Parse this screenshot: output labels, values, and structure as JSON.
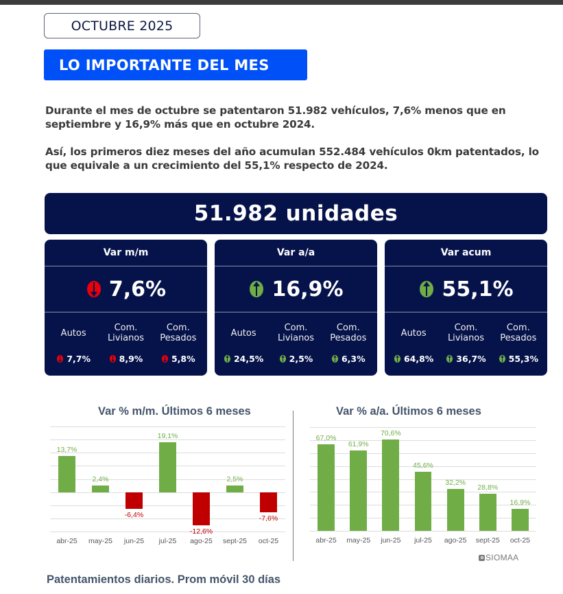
{
  "header": {
    "month_label": "OCTUBRE 2025",
    "section_title": "LO IMPORTANTE DEL MES"
  },
  "intro": {
    "paragraph1": "Durante el mes de octubre se patentaron 51.982 vehículos, 7,6% menos que en septiembre y 16,9% más que en octubre 2024.",
    "paragraph2": "Así, los primeros diez meses del año acumulan 552.484 vehículos 0km patentados, lo que equivale a un crecimiento del 55,1% respecto de 2024."
  },
  "total": {
    "label": "51.982 unidades"
  },
  "colors": {
    "navy": "#06134a",
    "banner_blue": "#0050f8",
    "positive": "#70ad47",
    "negative": "#c00000",
    "arrow_down": "#e8000b",
    "arrow_up": "#70ad47"
  },
  "cards": [
    {
      "title": "Var m/m",
      "direction": "down",
      "value": "7,6%",
      "categories": [
        {
          "label_line1": "Autos",
          "label_line2": "",
          "value": "7,7%",
          "direction": "down"
        },
        {
          "label_line1": "Com.",
          "label_line2": "Livianos",
          "value": "8,9%",
          "direction": "down"
        },
        {
          "label_line1": "Com.",
          "label_line2": "Pesados",
          "value": "5,8%",
          "direction": "down"
        }
      ]
    },
    {
      "title": "Var a/a",
      "direction": "up",
      "value": "16,9%",
      "categories": [
        {
          "label_line1": "Autos",
          "label_line2": "",
          "value": "24,5%",
          "direction": "up"
        },
        {
          "label_line1": "Com.",
          "label_line2": "Livianos",
          "value": "2,5%",
          "direction": "up"
        },
        {
          "label_line1": "Com.",
          "label_line2": "Pesados",
          "value": "6,3%",
          "direction": "up"
        }
      ]
    },
    {
      "title": "Var acum",
      "direction": "up",
      "value": "55,1%",
      "categories": [
        {
          "label_line1": "Autos",
          "label_line2": "",
          "value": "64,8%",
          "direction": "up"
        },
        {
          "label_line1": "Com.",
          "label_line2": "Livianos",
          "value": "36,7%",
          "direction": "up"
        },
        {
          "label_line1": "Com.",
          "label_line2": "Pesados",
          "value": "55,3%",
          "direction": "up"
        }
      ]
    }
  ],
  "chart_data": [
    {
      "type": "bar",
      "title": "Var % m/m. Últimos 6 meses",
      "categories": [
        "abr-25",
        "may-25",
        "jun-25",
        "jul-25",
        "ago-25",
        "sept-25",
        "oct-25"
      ],
      "values": [
        13.7,
        2.4,
        -6.4,
        19.1,
        -12.6,
        2.5,
        -7.6
      ],
      "value_labels": [
        "13,7%",
        "2,4%",
        "-6,4%",
        "19,1%",
        "-12,6%",
        "2,5%",
        "-7,6%"
      ],
      "xlabel": "",
      "ylabel": "",
      "ylim": [
        -15,
        25
      ],
      "grid": true,
      "grid_step": 5,
      "legend": "none"
    },
    {
      "type": "bar",
      "title": "Var % a/a. Últimos 6 meses",
      "categories": [
        "abr-25",
        "may-25",
        "jun-25",
        "jul-25",
        "ago-25",
        "sept-25",
        "oct-25"
      ],
      "values": [
        67.0,
        61.9,
        70.6,
        45.6,
        32.2,
        28.8,
        16.9
      ],
      "value_labels": [
        "67,0%",
        "61,9%",
        "70,6%",
        "45,6%",
        "32,2%",
        "28,8%",
        "16,9%"
      ],
      "xlabel": "",
      "ylabel": "",
      "ylim": [
        0,
        80
      ],
      "grid": true,
      "grid_step": 10,
      "legend": "none"
    }
  ],
  "source_logo": "SIOMAA",
  "next_section_title": "Patentamientos diarios. Prom móvil 30 días"
}
